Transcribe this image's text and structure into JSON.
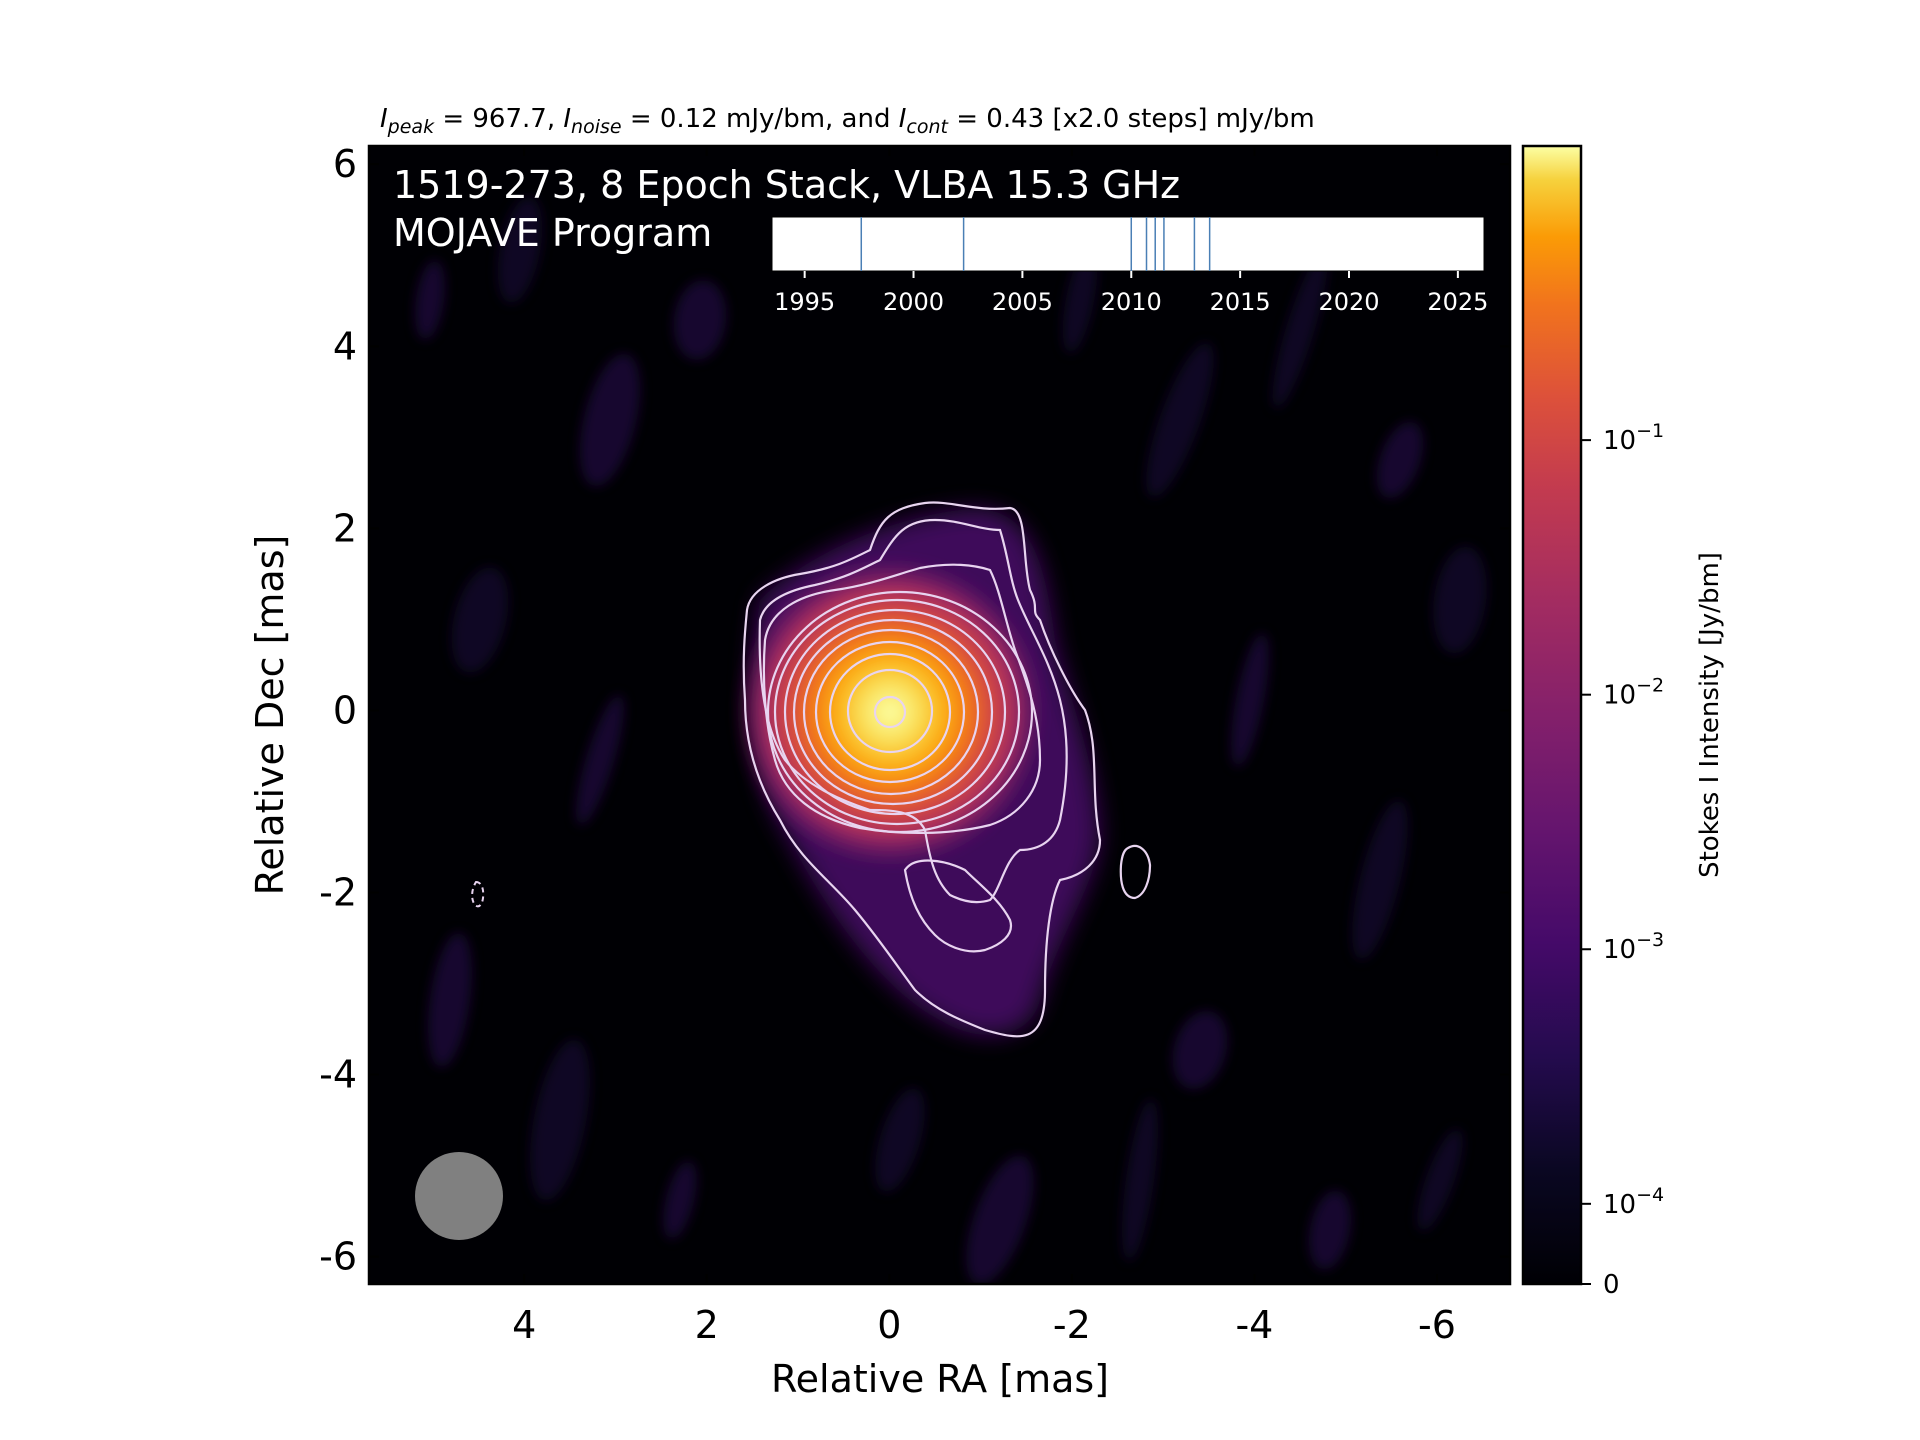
{
  "chart_data": [
    {
      "type": "heatmap",
      "title_parts": [
        {
          "text": "I",
          "style": "italic"
        },
        {
          "text": "peak",
          "style": "italic-sub"
        },
        {
          "text": " = 967.7, ",
          "style": "normal"
        },
        {
          "text": "I",
          "style": "italic"
        },
        {
          "text": "noise",
          "style": "italic-sub"
        },
        {
          "text": " = 0.12 mJy/bm, and ",
          "style": "normal"
        },
        {
          "text": "I",
          "style": "italic"
        },
        {
          "text": "cont",
          "style": "italic-sub"
        },
        {
          "text": " = 0.43 [x2.0 steps] mJy/bm",
          "style": "normal"
        }
      ],
      "annotation_line1": "1519-273, 8 Epoch Stack, VLBA 15.3 GHz",
      "annotation_line2": "MOJAVE Program",
      "xlabel": "Relative RA [mas]",
      "ylabel": "Relative Dec [mas]",
      "xlim": [
        5.7,
        -6.8
      ],
      "ylim": [
        -6.3,
        6.2
      ],
      "xticks": [
        "4",
        "2",
        "0",
        "-2",
        "-4",
        "-6"
      ],
      "xtick_values": [
        4,
        2,
        0,
        -2,
        -4,
        -6
      ],
      "yticks": [
        "6",
        "4",
        "2",
        "0",
        "-2",
        "-4",
        "-6"
      ],
      "ytick_values": [
        6,
        4,
        2,
        0,
        -2,
        -4,
        -6
      ],
      "core": {
        "ra": 0,
        "dec": 0
      },
      "contour_levels_mJy": [
        0.43,
        0.86,
        1.72,
        3.44,
        6.88,
        13.76,
        27.52,
        55.04,
        110.08,
        220.16,
        440.32,
        880.64
      ],
      "beam": {
        "ra": 4.7,
        "dec": -5.3,
        "major_mas": 0.95,
        "minor_mas": 0.95
      },
      "colormap": "inferno",
      "colorbar": {
        "label": "Stokes I Intensity [Jy/bm]",
        "scale": "log",
        "ticks": [
          {
            "label": "0",
            "value": 0
          },
          {
            "label": "10",
            "exp": "−4",
            "value": 0.0001
          },
          {
            "label": "10",
            "exp": "−3",
            "value": 0.001
          },
          {
            "label": "10",
            "exp": "−2",
            "value": 0.01
          },
          {
            "label": "10",
            "exp": "−1",
            "value": 0.1
          }
        ]
      }
    },
    {
      "type": "timeline",
      "xlim": [
        1993.5,
        2026.2
      ],
      "ticks": [
        "1995",
        "2000",
        "2005",
        "2010",
        "2015",
        "2020",
        "2025"
      ],
      "tick_values": [
        1995,
        2000,
        2005,
        2010,
        2015,
        2020,
        2025
      ],
      "epochs": [
        1997.6,
        2002.3,
        2010.0,
        2010.7,
        2011.1,
        2011.5,
        2012.9,
        2013.6
      ]
    }
  ],
  "colors": {
    "frame": "#000000",
    "contour": "#e8d4f0",
    "beam": "#808080",
    "epoch_line": "#4a7fb5",
    "annotation": "#ffffff"
  }
}
